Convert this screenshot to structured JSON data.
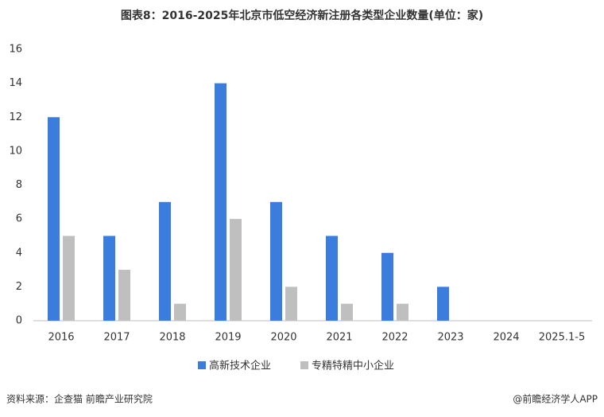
{
  "chart_data": {
    "type": "bar",
    "title": "图表8：2016-2025年北京市低空经济新注册各类型企业数量(单位：家)",
    "categories": [
      "2016",
      "2017",
      "2018",
      "2019",
      "2020",
      "2021",
      "2022",
      "2023",
      "2024",
      "2025.1-5"
    ],
    "series": [
      {
        "name": "高新技术企业",
        "color": "#3b7ddd",
        "values": [
          12,
          5,
          7,
          14,
          7,
          5,
          4,
          2,
          0,
          0
        ]
      },
      {
        "name": "专精特精中小企业",
        "color": "#bfbfbf",
        "values": [
          5,
          3,
          1,
          6,
          2,
          1,
          1,
          0,
          0,
          0
        ]
      }
    ],
    "ylim": [
      0,
      16
    ],
    "yticks": [
      0,
      2,
      4,
      6,
      8,
      10,
      12,
      14,
      16
    ],
    "grid": false,
    "legend": "bottom",
    "source": "资料来源：企查猫 前瞻产业研究院",
    "credit": "@前瞻经济学人APP"
  }
}
